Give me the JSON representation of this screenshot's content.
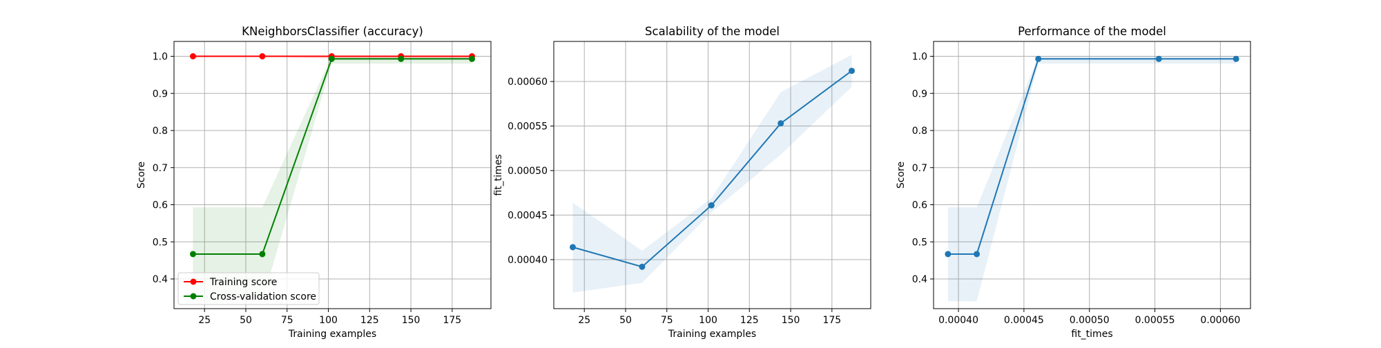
{
  "chart_data": [
    {
      "type": "line",
      "title": "KNeighborsClassifier (accuracy)",
      "xlabel": "Training examples",
      "ylabel": "Score",
      "xlim": [
        6.5,
        198.5
      ],
      "ylim": [
        0.32,
        1.04
      ],
      "xticks": [
        25,
        50,
        75,
        100,
        125,
        150,
        175
      ],
      "yticks": [
        0.4,
        0.5,
        0.6,
        0.7,
        0.8,
        0.9,
        1.0
      ],
      "grid": true,
      "legend_position": "lower-left",
      "x": [
        18,
        60,
        102,
        144,
        187
      ],
      "series": [
        {
          "name": "Training score",
          "color": "#ff0000",
          "values": [
            1.0,
            1.0,
            1.0,
            1.0,
            1.0
          ],
          "band_lower": [
            1.0,
            1.0,
            0.993,
            0.993,
            0.993
          ],
          "band_upper": [
            1.0,
            1.0,
            1.0,
            1.0,
            1.0
          ]
        },
        {
          "name": "Cross-validation score",
          "color": "#008000",
          "values": [
            0.467,
            0.467,
            0.993,
            0.993,
            0.993
          ],
          "band_lower": [
            0.34,
            0.34,
            0.98,
            0.98,
            0.98
          ],
          "band_upper": [
            0.593,
            0.593,
            1.0,
            1.0,
            1.0
          ]
        }
      ]
    },
    {
      "type": "line",
      "title": "Scalability of the model",
      "xlabel": "Training examples",
      "ylabel": "fit_times",
      "xlim": [
        6.5,
        198.5
      ],
      "ylim": [
        0.000345,
        0.000645
      ],
      "xticks": [
        25,
        50,
        75,
        100,
        125,
        150,
        175
      ],
      "yticks": [
        0.0004,
        0.00045,
        0.0005,
        0.00055,
        0.0006
      ],
      "ytick_labels": [
        "0.00040",
        "0.00045",
        "0.00050",
        "0.00055",
        "0.00060"
      ],
      "grid": true,
      "x": [
        18,
        60,
        102,
        144,
        187
      ],
      "series": [
        {
          "color": "#1f77b4",
          "values": [
            0.000414,
            0.000392,
            0.000461,
            0.000553,
            0.000612
          ],
          "band_lower": [
            0.000363,
            0.000374,
            0.000453,
            0.000518,
            0.000594
          ],
          "band_upper": [
            0.000464,
            0.00041,
            0.000469,
            0.000588,
            0.00063
          ]
        }
      ]
    },
    {
      "type": "line",
      "title": "Performance of the model",
      "xlabel": "fit_times",
      "ylabel": "Score",
      "xlim": [
        0.000381,
        0.000623
      ],
      "ylim": [
        0.32,
        1.04
      ],
      "xticks": [
        0.0004,
        0.00045,
        0.0005,
        0.00055,
        0.0006
      ],
      "xtick_labels": [
        "0.00040",
        "0.00045",
        "0.00050",
        "0.00055",
        "0.00060"
      ],
      "yticks": [
        0.4,
        0.5,
        0.6,
        0.7,
        0.8,
        0.9,
        1.0
      ],
      "grid": true,
      "x": [
        0.000392,
        0.000414,
        0.000461,
        0.000553,
        0.000612
      ],
      "series": [
        {
          "color": "#1f77b4",
          "values": [
            0.467,
            0.467,
            0.993,
            0.993,
            0.993
          ],
          "band_lower": [
            0.34,
            0.34,
            0.98,
            0.98,
            0.98
          ],
          "band_upper": [
            0.593,
            0.593,
            1.0,
            1.0,
            1.0
          ]
        }
      ]
    }
  ]
}
